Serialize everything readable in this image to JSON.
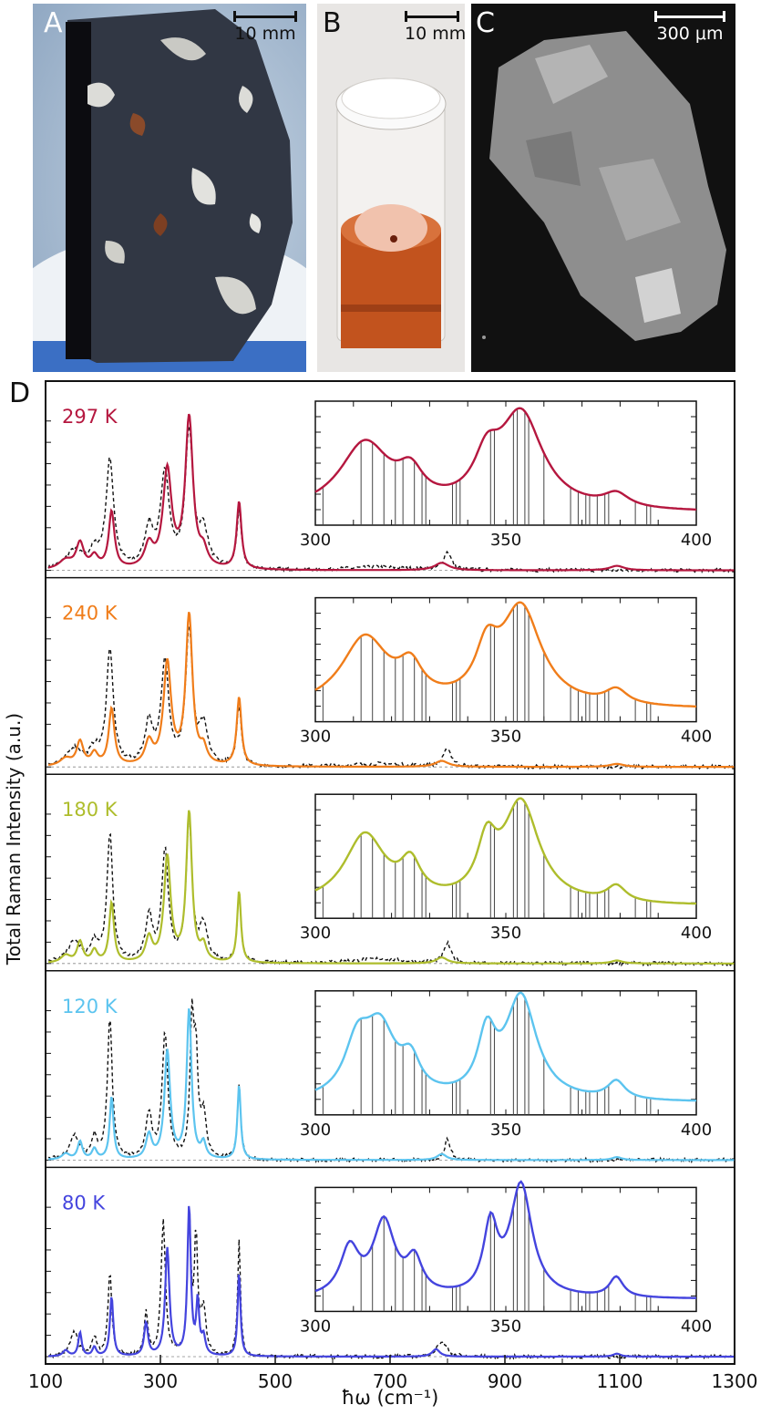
{
  "panels": {
    "A": {
      "letter": "A",
      "scale": "10 mm"
    },
    "B": {
      "letter": "B",
      "scale": "10 mm"
    },
    "C": {
      "letter": "C",
      "scale": "300 μm"
    },
    "D": {
      "letter": "D"
    }
  },
  "chart_data": {
    "type": "line",
    "xlabel": "ħω (cm⁻¹)",
    "ylabel": "Total Raman Intensity (a.u.)",
    "xlim": [
      100,
      1300
    ],
    "xticks": [
      100,
      300,
      500,
      700,
      900,
      1100,
      1300
    ],
    "inset_xlim": [
      300,
      400
    ],
    "inset_xticks": [
      300,
      350,
      400
    ],
    "legend_style": "solid colored = temperature spectrum; black dashed = reference spectrum; gray dashed = baseline",
    "temperatures": [
      {
        "label": "297 K",
        "color": "#b5173f",
        "solid_peaks": [
          [
            135,
            0.06,
            14
          ],
          [
            160,
            0.17,
            8
          ],
          [
            185,
            0.08,
            8
          ],
          [
            215,
            0.38,
            6
          ],
          [
            280,
            0.15,
            9
          ],
          [
            312,
            0.65,
            9
          ],
          [
            350,
            1.0,
            8
          ],
          [
            375,
            0.1,
            8
          ],
          [
            437,
            0.45,
            5
          ],
          [
            790,
            0.05,
            15
          ],
          [
            1095,
            0.03,
            15
          ]
        ],
        "dashed_peaks": [
          [
            150,
            0.12,
            18
          ],
          [
            185,
            0.1,
            10
          ],
          [
            212,
            0.72,
            8
          ],
          [
            280,
            0.26,
            9
          ],
          [
            308,
            0.63,
            9
          ],
          [
            350,
            0.9,
            8
          ],
          [
            375,
            0.24,
            10
          ],
          [
            437,
            0.38,
            5
          ],
          [
            800,
            0.12,
            8
          ],
          [
            680,
            0.02,
            60
          ]
        ],
        "inset_peaks": [
          [
            313,
            0.6,
            8
          ],
          [
            325,
            0.25,
            4
          ],
          [
            345,
            0.35,
            4
          ],
          [
            354,
            0.85,
            7
          ],
          [
            379,
            0.12,
            4
          ]
        ],
        "inset_sticks": [
          302,
          312,
          315,
          318,
          321,
          323,
          326,
          328,
          329,
          336,
          337,
          338,
          346,
          347,
          352,
          353,
          355,
          356,
          360,
          367,
          369,
          371,
          372,
          374,
          376,
          377,
          384,
          387,
          388
        ]
      },
      {
        "label": "240 K",
        "color": "#f07d1a",
        "solid_peaks": [
          [
            135,
            0.05,
            12
          ],
          [
            160,
            0.16,
            7
          ],
          [
            185,
            0.08,
            7
          ],
          [
            215,
            0.38,
            6
          ],
          [
            280,
            0.15,
            8
          ],
          [
            312,
            0.68,
            8
          ],
          [
            350,
            1.0,
            7
          ],
          [
            375,
            0.1,
            7
          ],
          [
            437,
            0.46,
            5
          ],
          [
            790,
            0.04,
            14
          ],
          [
            1095,
            0.02,
            15
          ]
        ],
        "dashed_peaks": [
          [
            150,
            0.12,
            16
          ],
          [
            185,
            0.1,
            9
          ],
          [
            212,
            0.78,
            7
          ],
          [
            280,
            0.28,
            8
          ],
          [
            308,
            0.68,
            8
          ],
          [
            350,
            0.9,
            7
          ],
          [
            375,
            0.25,
            9
          ],
          [
            437,
            0.4,
            5
          ],
          [
            800,
            0.12,
            8
          ],
          [
            680,
            0.02,
            60
          ]
        ],
        "inset_peaks": [
          [
            313,
            0.62,
            7.5
          ],
          [
            325,
            0.28,
            3.8
          ],
          [
            345,
            0.4,
            3.5
          ],
          [
            354,
            0.88,
            6.5
          ],
          [
            379,
            0.13,
            3.5
          ]
        ],
        "inset_sticks": [
          302,
          312,
          315,
          318,
          321,
          323,
          326,
          328,
          329,
          336,
          337,
          338,
          346,
          347,
          352,
          353,
          355,
          356,
          360,
          367,
          369,
          371,
          372,
          374,
          376,
          377,
          384,
          387,
          388
        ]
      },
      {
        "label": "180 K",
        "color": "#aebd2c",
        "solid_peaks": [
          [
            135,
            0.05,
            10
          ],
          [
            160,
            0.14,
            6
          ],
          [
            185,
            0.08,
            6
          ],
          [
            215,
            0.4,
            5
          ],
          [
            280,
            0.16,
            7
          ],
          [
            312,
            0.7,
            7
          ],
          [
            350,
            1.0,
            6
          ],
          [
            375,
            0.1,
            6
          ],
          [
            437,
            0.48,
            4
          ],
          [
            790,
            0.04,
            12
          ],
          [
            1095,
            0.02,
            12
          ]
        ],
        "dashed_peaks": [
          [
            150,
            0.14,
            14
          ],
          [
            185,
            0.12,
            8
          ],
          [
            212,
            0.86,
            6
          ],
          [
            280,
            0.3,
            7
          ],
          [
            308,
            0.74,
            7
          ],
          [
            350,
            0.95,
            6
          ],
          [
            375,
            0.24,
            8
          ],
          [
            437,
            0.45,
            4
          ],
          [
            800,
            0.13,
            7
          ],
          [
            680,
            0.03,
            60
          ]
        ],
        "inset_peaks": [
          [
            313,
            0.62,
            6.5
          ],
          [
            325,
            0.3,
            3.2
          ],
          [
            345,
            0.45,
            3
          ],
          [
            354,
            0.9,
            5.8
          ],
          [
            379,
            0.14,
            3
          ]
        ],
        "inset_sticks": [
          302,
          312,
          315,
          318,
          321,
          323,
          326,
          328,
          329,
          336,
          337,
          338,
          346,
          347,
          352,
          353,
          355,
          356,
          360,
          367,
          369,
          371,
          372,
          374,
          376,
          377,
          384,
          387,
          388
        ]
      },
      {
        "label": "120 K",
        "color": "#5cc4ef",
        "solid_peaks": [
          [
            135,
            0.04,
            8
          ],
          [
            160,
            0.12,
            5
          ],
          [
            185,
            0.07,
            5
          ],
          [
            215,
            0.42,
            4
          ],
          [
            280,
            0.16,
            6
          ],
          [
            312,
            0.72,
            6
          ],
          [
            350,
            1.0,
            5
          ],
          [
            375,
            0.1,
            5
          ],
          [
            437,
            0.5,
            3.5
          ],
          [
            790,
            0.04,
            10
          ],
          [
            1095,
            0.02,
            10
          ]
        ],
        "dashed_peaks": [
          [
            150,
            0.16,
            10
          ],
          [
            185,
            0.14,
            6
          ],
          [
            212,
            0.94,
            5
          ],
          [
            280,
            0.3,
            6
          ],
          [
            308,
            0.84,
            6
          ],
          [
            355,
            0.88,
            4
          ],
          [
            362,
            0.62,
            4
          ],
          [
            375,
            0.28,
            6
          ],
          [
            437,
            0.5,
            3.5
          ],
          [
            800,
            0.14,
            6
          ]
        ],
        "inset_peaks": [
          [
            311,
            0.45,
            4
          ],
          [
            317,
            0.6,
            5
          ],
          [
            325,
            0.28,
            3
          ],
          [
            345,
            0.52,
            2.8
          ],
          [
            354,
            0.92,
            5
          ],
          [
            379,
            0.16,
            2.8
          ]
        ],
        "inset_sticks": [
          302,
          312,
          315,
          318,
          321,
          323,
          326,
          328,
          329,
          336,
          337,
          338,
          346,
          347,
          352,
          353,
          355,
          356,
          360,
          367,
          369,
          371,
          372,
          374,
          376,
          377,
          384,
          387,
          388
        ]
      },
      {
        "label": "80 K",
        "color": "#4444de",
        "solid_peaks": [
          [
            135,
            0.04,
            6
          ],
          [
            160,
            0.16,
            3.5
          ],
          [
            185,
            0.06,
            4
          ],
          [
            215,
            0.4,
            3.5
          ],
          [
            275,
            0.22,
            4
          ],
          [
            312,
            0.72,
            4.5
          ],
          [
            350,
            1.0,
            3.5
          ],
          [
            365,
            0.35,
            3
          ],
          [
            375,
            0.12,
            4
          ],
          [
            437,
            0.56,
            3
          ],
          [
            780,
            0.05,
            8
          ],
          [
            1095,
            0.02,
            8
          ]
        ],
        "dashed_peaks": [
          [
            150,
            0.16,
            8
          ],
          [
            185,
            0.12,
            5
          ],
          [
            212,
            0.56,
            4
          ],
          [
            275,
            0.28,
            4
          ],
          [
            305,
            0.9,
            4.5
          ],
          [
            350,
            0.95,
            3.5
          ],
          [
            362,
            0.78,
            3.5
          ],
          [
            375,
            0.3,
            5
          ],
          [
            437,
            0.78,
            3
          ],
          [
            790,
            0.1,
            10
          ]
        ],
        "inset_peaks": [
          [
            309,
            0.42,
            3
          ],
          [
            318,
            0.66,
            3.5
          ],
          [
            326,
            0.3,
            2.5
          ],
          [
            346,
            0.6,
            2.2
          ],
          [
            354,
            1.0,
            3.5
          ],
          [
            379,
            0.18,
            2.2
          ]
        ],
        "inset_sticks": [
          302,
          312,
          315,
          318,
          321,
          323,
          326,
          328,
          329,
          336,
          337,
          338,
          346,
          347,
          352,
          353,
          355,
          356,
          360,
          367,
          369,
          371,
          372,
          374,
          376,
          377,
          384,
          387,
          388
        ]
      }
    ]
  }
}
